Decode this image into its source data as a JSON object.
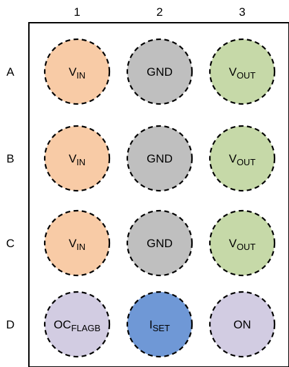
{
  "columns": [
    "1",
    "2",
    "3"
  ],
  "rows": [
    "A",
    "B",
    "C",
    "D"
  ],
  "colors": {
    "vin": "#F8CBA6",
    "gnd": "#BFBFBF",
    "vout": "#C6D9A8",
    "purple": "#D2CCE2",
    "blue": "#6F98D6",
    "outline": "#000000"
  },
  "pins": [
    {
      "row": "A",
      "col": "1",
      "main": "V",
      "sub": "IN",
      "color": "#F8CBA6"
    },
    {
      "row": "A",
      "col": "2",
      "main": "GND",
      "sub": "",
      "color": "#BFBFBF"
    },
    {
      "row": "A",
      "col": "3",
      "main": "V",
      "sub": "OUT",
      "color": "#C6D9A8"
    },
    {
      "row": "B",
      "col": "1",
      "main": "V",
      "sub": "IN",
      "color": "#F8CBA6"
    },
    {
      "row": "B",
      "col": "2",
      "main": "GND",
      "sub": "",
      "color": "#BFBFBF"
    },
    {
      "row": "B",
      "col": "3",
      "main": "V",
      "sub": "OUT",
      "color": "#C6D9A8"
    },
    {
      "row": "C",
      "col": "1",
      "main": "V",
      "sub": "IN",
      "color": "#F8CBA6"
    },
    {
      "row": "C",
      "col": "2",
      "main": "GND",
      "sub": "",
      "color": "#BFBFBF"
    },
    {
      "row": "C",
      "col": "3",
      "main": "V",
      "sub": "OUT",
      "color": "#C6D9A8"
    },
    {
      "row": "D",
      "col": "1",
      "main": "OC",
      "sub": "FLAGB",
      "color": "#D2CCE2"
    },
    {
      "row": "D",
      "col": "2",
      "main": "I",
      "sub": "SET",
      "color": "#6F98D6"
    },
    {
      "row": "D",
      "col": "3",
      "main": "ON",
      "sub": "",
      "color": "#D2CCE2"
    }
  ]
}
